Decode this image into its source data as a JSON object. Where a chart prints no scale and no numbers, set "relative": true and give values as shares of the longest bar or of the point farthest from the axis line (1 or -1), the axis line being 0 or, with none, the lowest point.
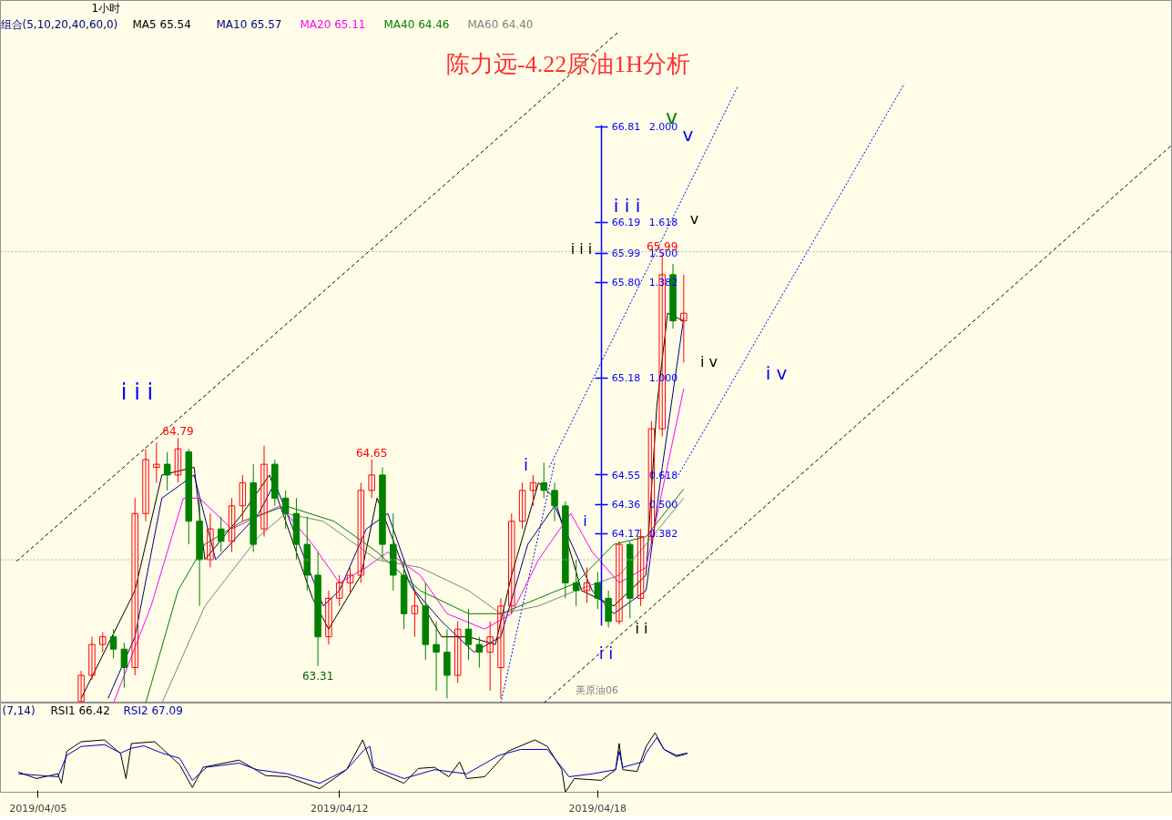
{
  "chart_data": [
    {
      "type": "candlestick",
      "title": "陈力远-4.22原油1H分析",
      "legend": "top left",
      "tick_labels": "y",
      "xlim": [
        "2019-04-04T03:00",
        "2019-05-01T08:30"
      ],
      "ylim": [
        63.07,
        67.63
      ],
      "yticks": [
        {
          "value": 66.81,
          "label": "66.81"
        },
        {
          "value": 66.19,
          "label": "66.19"
        },
        {
          "value": 65.99,
          "label": "65.99"
        },
        {
          "value": 65.8,
          "label": "65.80"
        },
        {
          "value": 65.18,
          "label": "65.18"
        },
        {
          "value": 64.55,
          "label": "64.55"
        },
        {
          "value": 64.36,
          "label": "64.36"
        },
        {
          "value": 64.17,
          "label": "64.17"
        }
      ],
      "x": [
        "2019-04-06T00:00",
        "2019-04-06T06:00",
        "2019-04-06T12:00",
        "2019-04-06T18:00",
        "2019-04-07T00:00",
        "2019-04-07T06:00",
        "2019-04-07T12:00",
        "2019-04-07T18:00",
        "2019-04-08T00:00",
        "2019-04-08T06:00",
        "2019-04-08T12:00",
        "2019-04-08T18:00",
        "2019-04-09T00:00",
        "2019-04-09T06:00",
        "2019-04-09T12:00",
        "2019-04-09T18:00",
        "2019-04-10T00:00",
        "2019-04-10T06:00",
        "2019-04-10T12:00",
        "2019-04-10T18:00",
        "2019-04-11T00:00",
        "2019-04-11T06:00",
        "2019-04-11T12:00",
        "2019-04-11T18:00",
        "2019-04-12T00:00",
        "2019-04-12T06:00",
        "2019-04-12T12:00",
        "2019-04-12T18:00",
        "2019-04-13T00:00",
        "2019-04-13T06:00",
        "2019-04-13T12:00",
        "2019-04-13T18:00",
        "2019-04-14T00:00",
        "2019-04-14T06:00",
        "2019-04-14T12:00",
        "2019-04-14T18:00",
        "2019-04-15T00:00",
        "2019-04-15T06:00",
        "2019-04-15T12:00",
        "2019-04-15T18:00",
        "2019-04-16T00:00",
        "2019-04-16T06:00",
        "2019-04-16T12:00",
        "2019-04-16T18:00",
        "2019-04-17T00:00",
        "2019-04-17T06:00",
        "2019-04-17T12:00",
        "2019-04-17T18:00",
        "2019-04-18T00:00",
        "2019-04-18T06:00",
        "2019-04-18T12:00",
        "2019-04-18T18:00",
        "2019-04-19T00:00",
        "2019-04-19T06:00",
        "2019-04-19T12:00",
        "2019-04-19T18:00",
        "2019-04-20T00:00"
      ],
      "ohlc": [
        [
          63.08,
          63.28,
          63.08,
          63.25
        ],
        [
          63.25,
          63.5,
          63.22,
          63.45
        ],
        [
          63.45,
          63.53,
          63.4,
          63.5
        ],
        [
          63.5,
          63.55,
          63.36,
          63.42
        ],
        [
          63.42,
          63.46,
          63.17,
          63.3
        ],
        [
          63.3,
          64.4,
          63.25,
          64.3
        ],
        [
          64.3,
          64.72,
          64.25,
          64.65
        ],
        [
          64.6,
          64.76,
          64.5,
          64.62
        ],
        [
          64.62,
          64.7,
          64.45,
          64.55
        ],
        [
          64.55,
          64.79,
          64.5,
          64.72
        ],
        [
          64.7,
          64.72,
          64.1,
          64.25
        ],
        [
          64.25,
          64.4,
          63.7,
          64.0
        ],
        [
          64.0,
          64.3,
          63.95,
          64.2
        ],
        [
          64.2,
          64.28,
          64.05,
          64.12
        ],
        [
          64.12,
          64.4,
          64.05,
          64.35
        ],
        [
          64.35,
          64.55,
          64.25,
          64.5
        ],
        [
          64.5,
          64.62,
          64.05,
          64.1
        ],
        [
          64.2,
          64.74,
          64.15,
          64.62
        ],
        [
          64.62,
          64.65,
          64.35,
          64.4
        ],
        [
          64.4,
          64.45,
          64.2,
          64.3
        ],
        [
          64.3,
          64.4,
          64.0,
          64.1
        ],
        [
          64.1,
          64.28,
          63.8,
          63.9
        ],
        [
          63.9,
          64.05,
          63.31,
          63.5
        ],
        [
          63.5,
          63.8,
          63.45,
          63.75
        ],
        [
          63.75,
          63.9,
          63.7,
          63.85
        ],
        [
          63.85,
          63.95,
          63.78,
          63.9
        ],
        [
          63.9,
          64.5,
          63.85,
          64.45
        ],
        [
          64.45,
          64.65,
          64.4,
          64.55
        ],
        [
          64.55,
          64.6,
          64.0,
          64.1
        ],
        [
          64.1,
          64.3,
          63.8,
          63.9
        ],
        [
          63.9,
          64.0,
          63.55,
          63.65
        ],
        [
          63.65,
          63.8,
          63.5,
          63.7
        ],
        [
          63.7,
          63.85,
          63.35,
          63.45
        ],
        [
          63.45,
          63.6,
          63.15,
          63.4
        ],
        [
          63.4,
          63.55,
          63.1,
          63.25
        ],
        [
          63.25,
          63.6,
          63.2,
          63.55
        ],
        [
          63.55,
          63.68,
          63.35,
          63.45
        ],
        [
          63.45,
          63.5,
          63.3,
          63.4
        ],
        [
          63.4,
          63.6,
          63.15,
          63.5
        ],
        [
          63.3,
          63.75,
          63.1,
          63.7
        ],
        [
          63.7,
          64.3,
          63.65,
          64.25
        ],
        [
          64.25,
          64.5,
          64.2,
          64.45
        ],
        [
          64.45,
          64.55,
          64.35,
          64.5
        ],
        [
          64.5,
          64.63,
          64.4,
          64.45
        ],
        [
          64.45,
          64.5,
          64.25,
          64.35
        ],
        [
          64.35,
          64.38,
          63.75,
          63.85
        ],
        [
          63.85,
          64.0,
          63.7,
          63.8
        ],
        [
          63.8,
          63.95,
          63.72,
          63.85
        ],
        [
          63.85,
          63.92,
          63.68,
          63.75
        ],
        [
          63.75,
          63.8,
          63.56,
          63.6
        ],
        [
          63.6,
          64.12,
          63.58,
          64.1
        ],
        [
          64.1,
          64.12,
          63.62,
          63.75
        ],
        [
          63.75,
          64.2,
          63.7,
          64.15
        ],
        [
          64.15,
          64.9,
          64.1,
          64.85
        ],
        [
          64.85,
          65.99,
          64.8,
          65.85
        ],
        [
          65.85,
          65.92,
          65.5,
          65.55
        ],
        [
          65.55,
          65.85,
          65.28,
          65.6
        ]
      ],
      "colors": [
        "#ff0000",
        "#ff0000",
        "#ff0000",
        "#008000",
        "#008000",
        "#ff0000",
        "#ff0000",
        "#ff0000",
        "#008000",
        "#ff0000",
        "#008000",
        "#008000",
        "#ff0000",
        "#008000",
        "#ff0000",
        "#ff0000",
        "#008000",
        "#ff0000",
        "#008000",
        "#008000",
        "#008000",
        "#008000",
        "#008000",
        "#ff0000",
        "#ff0000",
        "#ff0000",
        "#ff0000",
        "#ff0000",
        "#008000",
        "#008000",
        "#008000",
        "#ff0000",
        "#008000",
        "#008000",
        "#008000",
        "#ff0000",
        "#008000",
        "#008000",
        "#ff0000",
        "#ff0000",
        "#ff0000",
        "#ff0000",
        "#ff0000",
        "#008000",
        "#008000",
        "#008000",
        "#008000",
        "#ff0000",
        "#008000",
        "#008000",
        "#ff0000",
        "#008000",
        "#ff0000",
        "#ff0000",
        "#ff0000",
        "#008000",
        "#ff0000"
      ],
      "series": [
        {
          "type": "line",
          "name": "MA5 65.54",
          "color": "#000000",
          "x": [
            "2019-04-06T00:00",
            "2019-04-07T06:00",
            "2019-04-07T21:00",
            "2019-04-08T15:00",
            "2019-04-08T21:00",
            "2019-04-09T18:00",
            "2019-04-10T09:00",
            "2019-04-11T09:00",
            "2019-04-11T18:00",
            "2019-04-12T12:00",
            "2019-04-12T21:00",
            "2019-04-13T15:00",
            "2019-04-14T09:00",
            "2019-04-15T00:00",
            "2019-04-15T15:00",
            "2019-04-16T00:00",
            "2019-04-16T15:00",
            "2019-04-17T00:00",
            "2019-04-17T15:00",
            "2019-04-18T09:00",
            "2019-04-19T03:00",
            "2019-04-19T09:00",
            "2019-04-19T15:00",
            "2019-04-20T00:00"
          ],
          "values": [
            63.1,
            63.8,
            64.55,
            64.6,
            64.0,
            64.3,
            64.55,
            63.75,
            63.55,
            63.9,
            64.4,
            63.85,
            63.5,
            63.5,
            63.45,
            63.9,
            64.5,
            64.4,
            63.8,
            63.7,
            63.9,
            65.0,
            65.6,
            65.55
          ]
        },
        {
          "type": "line",
          "name": "MA10 65.57",
          "color": "#000080",
          "x": [
            "2019-04-06T15:00",
            "2019-04-07T06:00",
            "2019-04-07T21:00",
            "2019-04-08T15:00",
            "2019-04-09T03:00",
            "2019-04-10T03:00",
            "2019-04-10T12:00",
            "2019-04-11T15:00",
            "2019-04-12T00:00",
            "2019-04-12T15:00",
            "2019-04-13T03:00",
            "2019-04-13T18:00",
            "2019-04-14T09:00",
            "2019-04-15T03:00",
            "2019-04-15T18:00",
            "2019-04-16T09:00",
            "2019-04-17T00:00",
            "2019-04-17T21:00",
            "2019-04-18T09:00",
            "2019-04-19T03:00",
            "2019-04-19T12:00",
            "2019-04-20T00:00"
          ],
          "values": [
            63.1,
            63.5,
            64.4,
            64.55,
            64.0,
            64.3,
            64.5,
            63.7,
            63.8,
            64.2,
            64.3,
            63.8,
            63.6,
            63.4,
            63.5,
            64.1,
            64.35,
            63.8,
            63.65,
            63.8,
            64.6,
            65.57
          ]
        },
        {
          "type": "line",
          "name": "MA20 65.11",
          "color": "#ff00ff",
          "x": [
            "2019-04-06T18:00",
            "2019-04-07T15:00",
            "2019-04-08T09:00",
            "2019-04-08T18:00",
            "2019-04-09T12:00",
            "2019-04-10T15:00",
            "2019-04-11T09:00",
            "2019-04-12T00:00",
            "2019-04-12T15:00",
            "2019-04-13T03:00",
            "2019-04-13T21:00",
            "2019-04-14T12:00",
            "2019-04-15T09:00",
            "2019-04-16T00:00",
            "2019-04-16T15:00",
            "2019-04-17T09:00",
            "2019-04-17T21:00",
            "2019-04-18T12:00",
            "2019-04-19T03:00",
            "2019-04-20T00:00"
          ],
          "values": [
            63.07,
            63.7,
            64.4,
            64.4,
            64.2,
            64.35,
            64.1,
            63.85,
            63.95,
            64.05,
            63.9,
            63.65,
            63.55,
            63.65,
            64.0,
            64.3,
            64.05,
            63.85,
            63.95,
            65.11
          ]
        },
        {
          "type": "line",
          "name": "MA40 64.46",
          "color": "#008000",
          "x": [
            "2019-04-07T12:00",
            "2019-04-08T06:00",
            "2019-04-08T21:00",
            "2019-04-09T18:00",
            "2019-04-10T18:00",
            "2019-04-11T21:00",
            "2019-04-12T21:00",
            "2019-04-13T21:00",
            "2019-04-15T00:00",
            "2019-04-15T18:00",
            "2019-04-16T15:00",
            "2019-04-17T12:00",
            "2019-04-18T09:00",
            "2019-04-19T03:00",
            "2019-04-20T00:00"
          ],
          "values": [
            63.07,
            63.8,
            64.1,
            64.25,
            64.35,
            64.25,
            64.05,
            63.8,
            63.65,
            63.65,
            63.75,
            63.85,
            64.1,
            64.15,
            64.46
          ]
        },
        {
          "type": "line",
          "name": "MA60 64.40",
          "color": "#808080",
          "x": [
            "2019-04-07T21:00",
            "2019-04-08T21:00",
            "2019-04-10T03:00",
            "2019-04-10T18:00",
            "2019-04-11T15:00",
            "2019-04-12T21:00",
            "2019-04-13T21:00",
            "2019-04-15T00:00",
            "2019-04-15T18:00",
            "2019-04-16T15:00",
            "2019-04-17T12:00",
            "2019-04-18T12:00",
            "2019-04-19T03:00",
            "2019-04-20T00:00"
          ],
          "values": [
            63.07,
            63.7,
            64.15,
            64.3,
            64.25,
            64.0,
            63.95,
            63.8,
            63.65,
            63.7,
            63.8,
            63.9,
            64.1,
            64.4
          ]
        },
        {
          "type": "line",
          "color": "#000000",
          "line_style": "dashed",
          "x": [
            "2019-04-04T12:00",
            "2019-04-18T12:00"
          ],
          "values": [
            63.99,
            67.43
          ]
        },
        {
          "type": "line",
          "color": "#000000",
          "line_style": "dashed",
          "x": [
            "2019-04-16T18:00",
            "2019-05-01T08:00"
          ],
          "values": [
            63.07,
            66.69
          ]
        },
        {
          "type": "line",
          "color": "#0000ff",
          "line_style": "dotted",
          "x": [
            "2019-04-16T21:00",
            "2019-04-21T06:00"
          ],
          "values": [
            64.6,
            67.07
          ]
        },
        {
          "type": "line",
          "color": "#0000ff",
          "line_style": "dotted",
          "x": [
            "2019-04-19T21:00",
            "2019-04-25T03:00"
          ],
          "values": [
            64.55,
            67.09
          ]
        },
        {
          "type": "line",
          "color": "#0000ff",
          "line_style": "dotted",
          "x": [
            "2019-04-15T18:00",
            "2019-04-17T00:00"
          ],
          "values": [
            63.07,
            64.63
          ]
        }
      ],
      "ref_lines": [
        {
          "axis": "y",
          "value": 66.0,
          "color": "#b0b0b0",
          "line_style": "dotted"
        },
        {
          "axis": "y",
          "value": 64.0,
          "color": "#b0b0b0",
          "line_style": "dotted"
        }
      ],
      "annotations": [
        "1小时",
        "组合(5,10,20,40,60,0)",
        "美原油06",
        "i i i",
        "v",
        "v",
        "i i i",
        "v",
        "i i i",
        "i",
        "i",
        "i v",
        "i v",
        "i i",
        "i i",
        "2.000",
        "1.618",
        "1.500",
        "1.382",
        "1.000",
        "0.618",
        "0.500",
        "0.382",
        {
          "text": "64.79",
          "x": "2019-04-08T06:00",
          "y": 64.79
        },
        {
          "text": "64.65",
          "x": "2019-04-12T18:00",
          "y": 64.65
        },
        {
          "text": "63.31",
          "x": "2019-04-11T12:00",
          "y": 63.31
        },
        {
          "text": "65.99",
          "x": "2019-04-19T12:00",
          "y": 65.99
        }
      ]
    },
    {
      "type": "line",
      "relative": true,
      "legend": "top left",
      "tick_labels": "x",
      "xlim": [
        "2019-04-04T03:00",
        "2019-05-01T08:30"
      ],
      "xticks": [
        {
          "value": "2019-04-05",
          "label": "2019/04/05"
        },
        {
          "value": "2019-04-12",
          "label": "2019/04/12"
        },
        {
          "value": "2019-04-18",
          "label": "2019/04/18"
        }
      ],
      "annotations": [
        "(7,14)"
      ],
      "series": [
        {
          "name": "RSI1 66.42",
          "color": "#000000",
          "x": [
            "2019-04-04T13:00",
            "2019-04-04T23:00",
            "2019-04-05T11:00",
            "2019-04-05T13:00",
            "2019-04-05T16:00",
            "2019-04-06T00:00",
            "2019-04-06T13:00",
            "2019-04-06T22:00",
            "2019-04-07T01:00",
            "2019-04-07T04:00",
            "2019-04-07T17:00",
            "2019-04-08T07:00",
            "2019-04-08T14:00",
            "2019-04-08T20:00",
            "2019-04-09T16:00",
            "2019-04-10T07:00",
            "2019-04-10T19:00",
            "2019-04-11T13:00",
            "2019-04-12T04:00",
            "2019-04-12T13:00",
            "2019-04-12T19:00",
            "2019-04-13T12:00",
            "2019-04-13T20:00",
            "2019-04-14T05:00",
            "2019-04-14T13:00",
            "2019-04-14T19:00",
            "2019-04-14T23:00",
            "2019-04-15T09:00",
            "2019-04-15T22:00",
            "2019-04-16T13:00",
            "2019-04-16T20:00",
            "2019-04-17T04:00",
            "2019-04-17T06:00",
            "2019-04-17T11:00",
            "2019-04-18T02:00",
            "2019-04-18T10:00",
            "2019-04-18T12:00",
            "2019-04-18T14:00",
            "2019-04-18T22:00",
            "2019-04-19T03:00",
            "2019-04-19T08:00",
            "2019-04-19T13:00",
            "2019-04-19T20:00",
            "2019-04-20T02:00"
          ],
          "values": [
            0.34,
            0.23,
            0.31,
            0.15,
            0.69,
            0.85,
            0.88,
            0.65,
            0.23,
            0.82,
            0.85,
            0.46,
            0.08,
            0.42,
            0.54,
            0.28,
            0.26,
            0.06,
            0.38,
            0.88,
            0.38,
            0.15,
            0.4,
            0.42,
            0.26,
            0.51,
            0.23,
            0.26,
            0.69,
            0.88,
            0.77,
            0.38,
            0,
            0.23,
            0.2,
            0.38,
            0.82,
            0.38,
            0.35,
            0.77,
            1,
            0.72,
            0.6,
            0.65
          ]
        },
        {
          "name": "RSI2 67.09",
          "color": "#0000c0",
          "x": [
            "2019-04-04T13:00",
            "2019-04-05T11:00",
            "2019-04-05T16:00",
            "2019-04-06T00:00",
            "2019-04-06T13:00",
            "2019-04-06T22:00",
            "2019-04-07T04:00",
            "2019-04-07T11:00",
            "2019-04-07T21:00",
            "2019-04-08T07:00",
            "2019-04-08T14:00",
            "2019-04-08T22:00",
            "2019-04-09T16:00",
            "2019-04-10T02:00",
            "2019-04-10T19:00",
            "2019-04-11T13:00",
            "2019-04-12T04:00",
            "2019-04-12T14:00",
            "2019-04-12T17:00",
            "2019-04-12T19:00",
            "2019-04-13T12:00",
            "2019-04-14T05:00",
            "2019-04-14T23:00",
            "2019-04-15T17:00",
            "2019-04-16T05:00",
            "2019-04-16T20:00",
            "2019-04-17T04:00",
            "2019-04-17T08:00",
            "2019-04-17T21:00",
            "2019-04-18T10:00",
            "2019-04-18T12:00",
            "2019-04-18T14:00",
            "2019-04-19T01:00",
            "2019-04-19T03:00",
            "2019-04-19T09:00",
            "2019-04-19T13:00",
            "2019-04-19T20:00",
            "2019-04-20T02:00"
          ],
          "values": [
            0.31,
            0.26,
            0.62,
            0.77,
            0.8,
            0.66,
            0.74,
            0.78,
            0.66,
            0.57,
            0.2,
            0.42,
            0.49,
            0.38,
            0.31,
            0.15,
            0.38,
            0.72,
            0.77,
            0.42,
            0.23,
            0.38,
            0.31,
            0.62,
            0.72,
            0.72,
            0.42,
            0.26,
            0.31,
            0.38,
            0.69,
            0.42,
            0.51,
            0.66,
            0.92,
            0.72,
            0.62,
            0.66
          ]
        }
      ]
    }
  ]
}
